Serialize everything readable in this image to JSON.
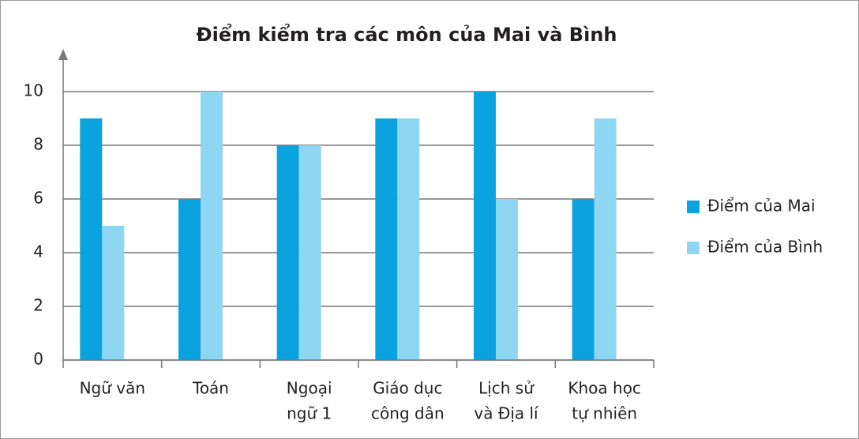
{
  "chart_data": {
    "type": "bar",
    "title": "Điểm kiểm tra các môn của Mai và Bình",
    "categories": [
      [
        "Ngữ văn"
      ],
      [
        "Toán"
      ],
      [
        "Ngoại",
        "ngữ 1"
      ],
      [
        "Giáo dục",
        "công dân"
      ],
      [
        "Lịch sử",
        "và Địa lí"
      ],
      [
        "Khoa học",
        "tự nhiên"
      ]
    ],
    "series": [
      {
        "name": "Điểm của Mai",
        "color": "#0aa3e0",
        "values": [
          9,
          6,
          8,
          9,
          10,
          6
        ]
      },
      {
        "name": "Điểm của Bình",
        "color": "#8fd6f3",
        "values": [
          5,
          10,
          8,
          9,
          6,
          9
        ]
      }
    ],
    "ylim": [
      0,
      10
    ],
    "yticks": [
      0,
      2,
      4,
      6,
      8,
      10
    ],
    "grid": true,
    "legend": "right"
  }
}
